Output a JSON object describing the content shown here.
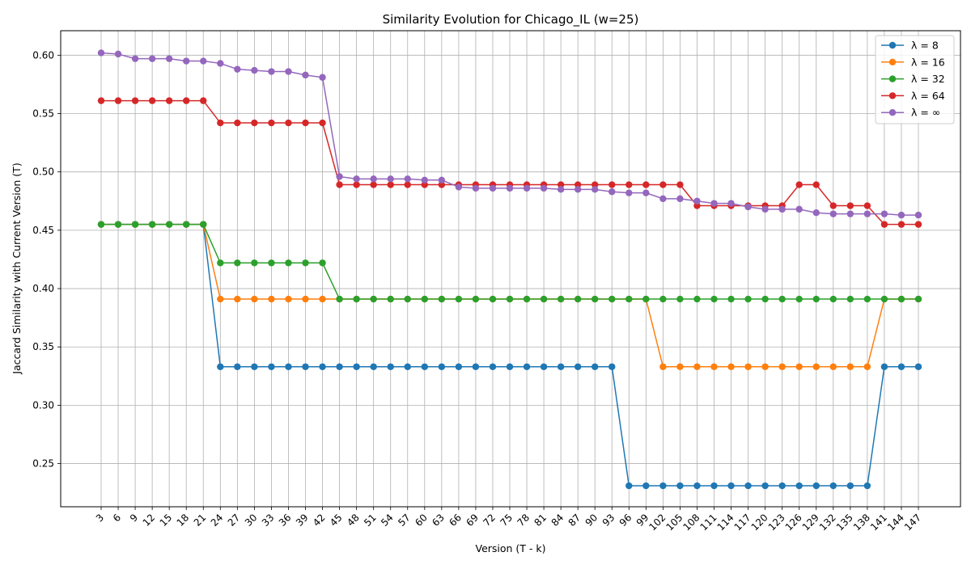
{
  "chart_data": {
    "type": "line",
    "title": "Similarity Evolution for Chicago_IL (w=25)",
    "xlabel": "Version (T - k)",
    "ylabel": "Jaccard Similarity with Current Version (T)",
    "ylim": [
      0.213,
      0.621
    ],
    "yticks": [
      0.25,
      0.3,
      0.35,
      0.4,
      0.45,
      0.5,
      0.55,
      0.6
    ],
    "ytick_labels": [
      "0.25",
      "0.30",
      "0.35",
      "0.40",
      "0.45",
      "0.50",
      "0.55",
      "0.60"
    ],
    "grid": true,
    "legend_position": "top-right",
    "x": [
      3,
      6,
      9,
      12,
      15,
      18,
      21,
      24,
      27,
      30,
      33,
      36,
      39,
      42,
      45,
      48,
      51,
      54,
      57,
      60,
      63,
      66,
      69,
      72,
      75,
      78,
      81,
      84,
      87,
      90,
      93,
      96,
      99,
      102,
      105,
      108,
      111,
      114,
      117,
      120,
      123,
      126,
      129,
      132,
      135,
      138,
      141,
      144,
      147
    ],
    "x_labels": [
      "3",
      "6",
      "9",
      "12",
      "15",
      "18",
      "21",
      "24",
      "27",
      "30",
      "33",
      "36",
      "39",
      "42",
      "45",
      "48",
      "51",
      "54",
      "57",
      "60",
      "63",
      "66",
      "69",
      "72",
      "75",
      "78",
      "81",
      "84",
      "87",
      "90",
      "93",
      "96",
      "99",
      "102",
      "105",
      "108",
      "111",
      "114",
      "117",
      "120",
      "123",
      "126",
      "129",
      "132",
      "135",
      "138",
      "141",
      "144",
      "147"
    ],
    "series": [
      {
        "name": "λ = 8",
        "color": "#1f77b4",
        "values": [
          0.455,
          0.455,
          0.455,
          0.455,
          0.455,
          0.455,
          0.455,
          0.333,
          0.333,
          0.333,
          0.333,
          0.333,
          0.333,
          0.333,
          0.333,
          0.333,
          0.333,
          0.333,
          0.333,
          0.333,
          0.333,
          0.333,
          0.333,
          0.333,
          0.333,
          0.333,
          0.333,
          0.333,
          0.333,
          0.333,
          0.333,
          0.231,
          0.231,
          0.231,
          0.231,
          0.231,
          0.231,
          0.231,
          0.231,
          0.231,
          0.231,
          0.231,
          0.231,
          0.231,
          0.231,
          0.231,
          0.333,
          0.333,
          0.333
        ]
      },
      {
        "name": "λ = 16",
        "color": "#ff7f0e",
        "values": [
          0.455,
          0.455,
          0.455,
          0.455,
          0.455,
          0.455,
          0.455,
          0.391,
          0.391,
          0.391,
          0.391,
          0.391,
          0.391,
          0.391,
          0.391,
          0.391,
          0.391,
          0.391,
          0.391,
          0.391,
          0.391,
          0.391,
          0.391,
          0.391,
          0.391,
          0.391,
          0.391,
          0.391,
          0.391,
          0.391,
          0.391,
          0.391,
          0.391,
          0.333,
          0.333,
          0.333,
          0.333,
          0.333,
          0.333,
          0.333,
          0.333,
          0.333,
          0.333,
          0.333,
          0.333,
          0.333,
          0.391,
          0.391,
          0.391
        ]
      },
      {
        "name": "λ = 32",
        "color": "#2ca02c",
        "values": [
          0.455,
          0.455,
          0.455,
          0.455,
          0.455,
          0.455,
          0.455,
          0.422,
          0.422,
          0.422,
          0.422,
          0.422,
          0.422,
          0.422,
          0.391,
          0.391,
          0.391,
          0.391,
          0.391,
          0.391,
          0.391,
          0.391,
          0.391,
          0.391,
          0.391,
          0.391,
          0.391,
          0.391,
          0.391,
          0.391,
          0.391,
          0.391,
          0.391,
          0.391,
          0.391,
          0.391,
          0.391,
          0.391,
          0.391,
          0.391,
          0.391,
          0.391,
          0.391,
          0.391,
          0.391,
          0.391,
          0.391,
          0.391,
          0.391
        ]
      },
      {
        "name": "λ = 64",
        "color": "#d62728",
        "values": [
          0.561,
          0.561,
          0.561,
          0.561,
          0.561,
          0.561,
          0.561,
          0.542,
          0.542,
          0.542,
          0.542,
          0.542,
          0.542,
          0.542,
          0.489,
          0.489,
          0.489,
          0.489,
          0.489,
          0.489,
          0.489,
          0.489,
          0.489,
          0.489,
          0.489,
          0.489,
          0.489,
          0.489,
          0.489,
          0.489,
          0.489,
          0.489,
          0.489,
          0.489,
          0.489,
          0.471,
          0.471,
          0.471,
          0.471,
          0.471,
          0.471,
          0.489,
          0.489,
          0.471,
          0.471,
          0.471,
          0.455,
          0.455,
          0.455
        ]
      },
      {
        "name": "λ = ∞",
        "color": "#9467bd",
        "values": [
          0.602,
          0.601,
          0.597,
          0.597,
          0.597,
          0.595,
          0.595,
          0.593,
          0.588,
          0.587,
          0.586,
          0.586,
          0.583,
          0.581,
          0.496,
          0.494,
          0.494,
          0.494,
          0.494,
          0.493,
          0.493,
          0.487,
          0.486,
          0.486,
          0.486,
          0.486,
          0.486,
          0.485,
          0.485,
          0.485,
          0.483,
          0.482,
          0.482,
          0.477,
          0.477,
          0.475,
          0.473,
          0.473,
          0.47,
          0.468,
          0.468,
          0.468,
          0.465,
          0.464,
          0.464,
          0.464,
          0.464,
          0.463,
          0.463
        ]
      }
    ]
  }
}
